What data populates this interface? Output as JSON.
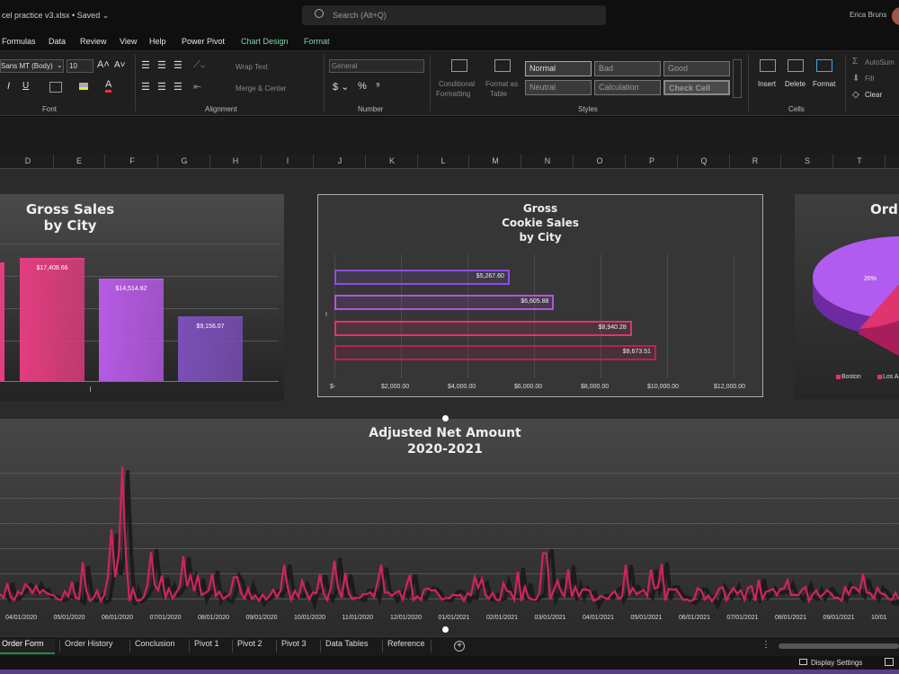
{
  "titlebar": {
    "doc_title": "cel practice v3.xlsx • Saved ⌄",
    "search_placeholder": "Search (Alt+Q)",
    "user_name": "Erica Bruns"
  },
  "menu": [
    "Formulas",
    "Data",
    "Review",
    "View",
    "Help",
    "Power Pivot",
    "Chart Design",
    "Format"
  ],
  "ribbon": {
    "font_name": "Sans MT (Body)",
    "font_size": "10",
    "wrap_text": "Wrap Text",
    "merge_center": "Merge & Center",
    "number_format": "General",
    "cond_format_1": "Conditional",
    "cond_format_2": "Formatting",
    "format_table_1": "Format as",
    "format_table_2": "Table",
    "styles": {
      "normal": "Normal",
      "bad": "Bad",
      "good": "Good",
      "neutral": "Neutral",
      "calculation": "Calculation",
      "check_cell": "Check Cell"
    },
    "insert": "Insert",
    "delete": "Delete",
    "format": "Format",
    "autosum": "AutoSum",
    "fill": "Fill",
    "clear": "Clear",
    "groups": {
      "font": "Font",
      "alignment": "Alignment",
      "number": "Number",
      "styles": "Styles",
      "cells": "Cells"
    }
  },
  "columns": [
    "D",
    "E",
    "F",
    "G",
    "H",
    "I",
    "J",
    "K",
    "L",
    "M",
    "N",
    "O",
    "P",
    "Q",
    "R",
    "S",
    "T"
  ],
  "charts": {
    "gross_sales": {
      "title1": "Gross Sales",
      "title2": "by City"
    },
    "cookie_sales": {
      "title1": "Gross",
      "title2": "Cookie Sales",
      "title3": "by City"
    },
    "orders": {
      "title": "Ord"
    },
    "net_amount": {
      "title1": "Adjusted Net Amount",
      "title2": "2020-2021"
    }
  },
  "chart_data": [
    {
      "type": "bar",
      "title": "Gross Sales by City",
      "values": [
        17408.66,
        14514.82,
        9156.07
      ],
      "labels": [
        "$17,408.66",
        "$14,514.82",
        "$9,156.07"
      ],
      "colors": [
        "#e23d7f",
        "#b75ae6",
        "#7b4fb8"
      ]
    },
    {
      "type": "bar",
      "orientation": "horizontal",
      "title": "Gross Cookie Sales by City",
      "values": [
        5267.6,
        6605.88,
        8940.28,
        9673.51
      ],
      "labels": [
        "$5,267.60",
        "$6,605.88",
        "$8,940.28",
        "$9,673.51"
      ],
      "colors": [
        "#8e4fe0",
        "#b253e4",
        "#e0346e",
        "#c21f4e"
      ],
      "xticks": [
        "$-",
        "$2,000.00",
        "$4,000.00",
        "$6,000.00",
        "$8,000.00",
        "$10,000.00",
        "$12,000.00"
      ],
      "xlim": [
        0,
        12000
      ]
    },
    {
      "type": "pie",
      "title": "Ord",
      "slice_labels": [
        "26%"
      ],
      "legend": [
        "Boston",
        "Los A"
      ],
      "legend_colors": [
        "#e0346e",
        "#e0346e"
      ]
    },
    {
      "type": "line",
      "title": "Adjusted Net Amount 2020-2021",
      "xticks": [
        "04/01/2020",
        "05/01/2020",
        "06/01/2020",
        "07/01/2020",
        "08/01/2020",
        "09/01/2020",
        "10/01/2020",
        "11/01/2020",
        "12/01/2020",
        "01/01/2021",
        "02/01/2021",
        "03/01/2021",
        "04/01/2021",
        "05/01/2021",
        "06/01/2021",
        "07/01/2021",
        "08/01/2021",
        "09/01/2021",
        "10/01"
      ]
    }
  ],
  "sheet_tabs": [
    "Order Form",
    "Order History",
    "Conclusion",
    "Pivot 1",
    "Pivot 2",
    "Pivot 3",
    "Data Tables",
    "Reference"
  ],
  "status": {
    "display_settings": "Display Settings"
  }
}
